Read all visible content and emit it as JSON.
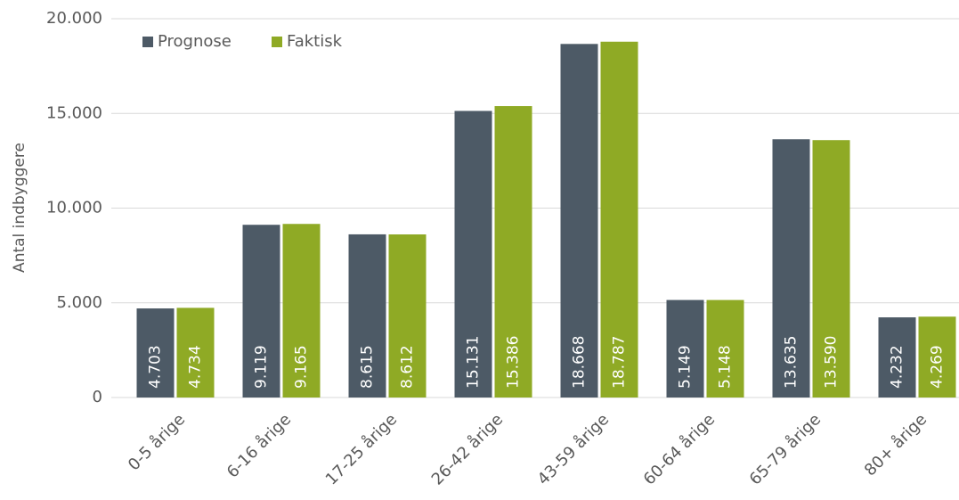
{
  "chart_data": {
    "type": "bar",
    "y_label": "Antal indbyggere",
    "categories": [
      "0-5 årige",
      "6-16 årige",
      "17-25 årige",
      "26-42 årige",
      "43-59 årige",
      "60-64 årige",
      "65-79 årige",
      "80+ årige"
    ],
    "series": [
      {
        "name": "Prognose",
        "color": "#4d5a66",
        "values": [
          4703,
          9119,
          8615,
          15131,
          18668,
          5149,
          13635,
          4232
        ],
        "value_labels": [
          "4.703",
          "9.119",
          "8.615",
          "15.131",
          "18.668",
          "5.149",
          "13.635",
          "4.232"
        ]
      },
      {
        "name": "Faktisk",
        "color": "#8faa25",
        "values": [
          4734,
          9165,
          8612,
          15386,
          18787,
          5148,
          13590,
          4269
        ],
        "value_labels": [
          "4.734",
          "9.165",
          "8.612",
          "15.386",
          "18.787",
          "5.148",
          "13.590",
          "4.269"
        ]
      }
    ],
    "ylim": [
      0,
      20000
    ],
    "yticks": [
      0,
      {
        "value": 5000,
        "label": "5.000"
      },
      {
        "value": 10000,
        "label": "10.000"
      },
      {
        "value": 15000,
        "label": "15.000"
      },
      {
        "value": 20000,
        "label": "20.000"
      }
    ],
    "grid": true,
    "legend": "top-left"
  }
}
